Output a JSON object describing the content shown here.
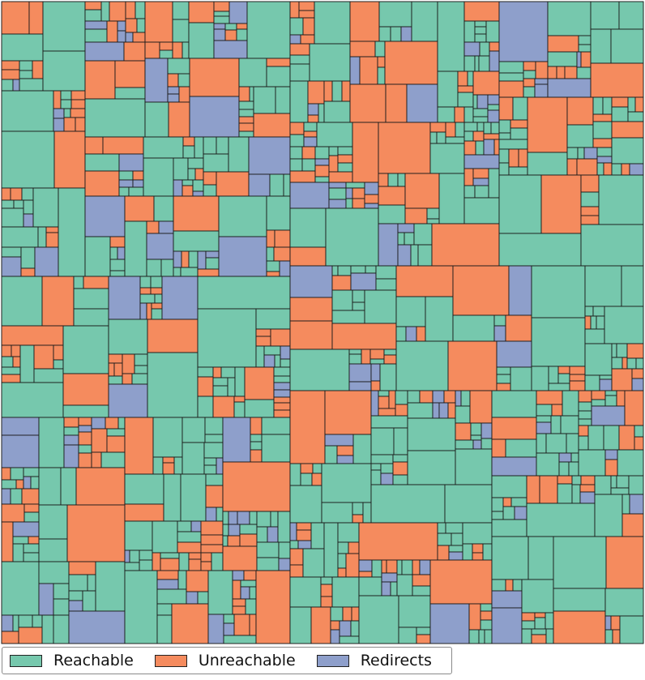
{
  "chart_data": {
    "type": "treemap",
    "title": "",
    "xlabel": "",
    "ylabel": "",
    "legend_position": "bottom-left",
    "series": [
      {
        "name": "Reachable",
        "color": "#76c8ad",
        "share": 0.52
      },
      {
        "name": "Unreachable",
        "color": "#f58b5e",
        "share": 0.33
      },
      {
        "name": "Redirects",
        "color": "#8e9fcb",
        "share": 0.15
      }
    ],
    "cell_border_color": "#1a1a1a"
  },
  "legend": {
    "reachable": "Reachable",
    "unreachable": "Unreachable",
    "redirects": "Redirects"
  }
}
